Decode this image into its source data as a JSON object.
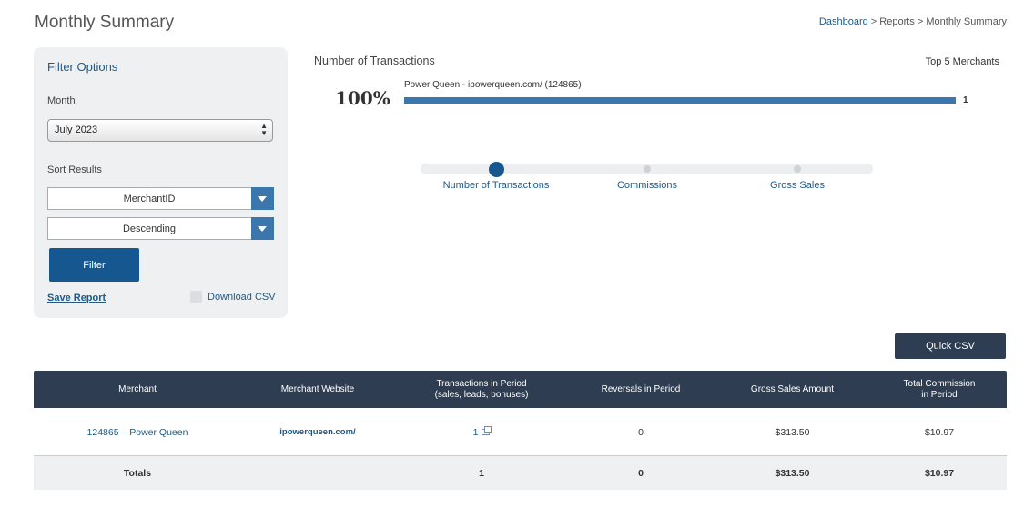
{
  "page": {
    "title": "Monthly Summary",
    "breadcrumb": {
      "dashboard": "Dashboard",
      "sep1": " > ",
      "reports": "Reports",
      "sep2": " > ",
      "current": "Monthly Summary"
    }
  },
  "filter": {
    "title": "Filter Options",
    "month_label": "Month",
    "month_value": "July 2023",
    "sort_label": "Sort Results",
    "sort_field": "MerchantID",
    "sort_order": "Descending",
    "filter_button": "Filter",
    "save_report": "Save Report",
    "download_csv": "Download CSV"
  },
  "chart_data": {
    "type": "bar",
    "title": "Number of Transactions",
    "legend_title": "Top 5 Merchants",
    "percent_label": "100%",
    "categories": [
      "Power Queen - ipowerqueen.com/ (124865)"
    ],
    "values": [
      1
    ],
    "max": 1,
    "color": "#3b77ad"
  },
  "metric_tabs": [
    {
      "label": "Number of Transactions",
      "active": true
    },
    {
      "label": "Commissions",
      "active": false
    },
    {
      "label": "Gross Sales",
      "active": false
    }
  ],
  "quick_csv": "Quick CSV",
  "table": {
    "headers": {
      "merchant": "Merchant",
      "website": "Merchant Website",
      "transactions_l1": "Transactions in Period",
      "transactions_l2": "(sales, leads, bonuses)",
      "reversals": "Reversals in Period",
      "gross_sales": "Gross Sales Amount",
      "commission_l1": "Total Commission",
      "commission_l2": "in Period"
    },
    "rows": [
      {
        "merchant": "124865 – Power Queen",
        "website": "ipowerqueen.com/",
        "transactions": "1",
        "reversals": "0",
        "gross_sales": "$313.50",
        "commission": "$10.97"
      }
    ],
    "totals": {
      "label": "Totals",
      "transactions": "1",
      "reversals": "0",
      "gross_sales": "$313.50",
      "commission": "$10.97"
    }
  },
  "colors": {
    "header_bg": "#2e3d52",
    "accent": "#16578f",
    "link": "#1c5a8a",
    "panel_bg": "#eef0f2"
  }
}
